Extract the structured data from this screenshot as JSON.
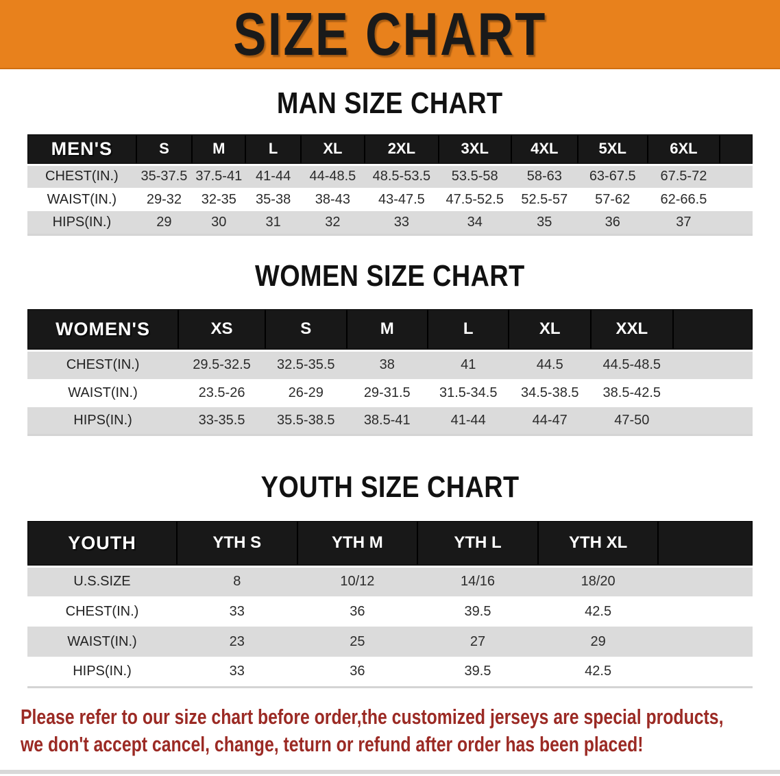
{
  "banner": {
    "title": "SIZE CHART"
  },
  "chart_data": [
    {
      "type": "table",
      "title": "MAN SIZE CHART",
      "corner_label": "MEN'S",
      "columns": [
        "S",
        "M",
        "L",
        "XL",
        "2XL",
        "3XL",
        "4XL",
        "5XL",
        "6XL"
      ],
      "rows": [
        {
          "label": "CHEST(IN.)",
          "values": [
            "35-37.5",
            "37.5-41",
            "41-44",
            "44-48.5",
            "48.5-53.5",
            "53.5-58",
            "58-63",
            "63-67.5",
            "67.5-72"
          ]
        },
        {
          "label": "WAIST(IN.)",
          "values": [
            "29-32",
            "32-35",
            "35-38",
            "38-43",
            "43-47.5",
            "47.5-52.5",
            "52.5-57",
            "57-62",
            "62-66.5"
          ]
        },
        {
          "label": "HIPS(IN.)",
          "values": [
            "29",
            "30",
            "31",
            "32",
            "33",
            "34",
            "35",
            "36",
            "37"
          ]
        }
      ]
    },
    {
      "type": "table",
      "title": "WOMEN SIZE CHART",
      "corner_label": "WOMEN'S",
      "columns": [
        "XS",
        "S",
        "M",
        "L",
        "XL",
        "XXL"
      ],
      "rows": [
        {
          "label": "CHEST(IN.)",
          "values": [
            "29.5-32.5",
            "32.5-35.5",
            "38",
            "41",
            "44.5",
            "44.5-48.5"
          ]
        },
        {
          "label": "WAIST(IN.)",
          "values": [
            "23.5-26",
            "26-29",
            "29-31.5",
            "31.5-34.5",
            "34.5-38.5",
            "38.5-42.5"
          ]
        },
        {
          "label": "HIPS(IN.)",
          "values": [
            "33-35.5",
            "35.5-38.5",
            "38.5-41",
            "41-44",
            "44-47",
            "47-50"
          ]
        }
      ]
    },
    {
      "type": "table",
      "title": "YOUTH SIZE CHART",
      "corner_label": "YOUTH",
      "columns": [
        "YTH S",
        "YTH M",
        "YTH L",
        "YTH XL"
      ],
      "rows": [
        {
          "label": "U.S.SIZE",
          "values": [
            "8",
            "10/12",
            "14/16",
            "18/20"
          ]
        },
        {
          "label": "CHEST(IN.)",
          "values": [
            "33",
            "36",
            "39.5",
            "42.5"
          ]
        },
        {
          "label": "WAIST(IN.)",
          "values": [
            "23",
            "25",
            "27",
            "29"
          ]
        },
        {
          "label": "HIPS(IN.)",
          "values": [
            "33",
            "36",
            "39.5",
            "42.5"
          ]
        }
      ]
    }
  ],
  "footer": {
    "line1": "Please refer to our size chart before order,the customized jerseys are special products,",
    "line2": "we don't accept cancel, change, teturn or refund after order has been placed!"
  },
  "colors": {
    "banner_orange": "#E8811C",
    "header_black": "#181818",
    "row_gray": "#DBDBDB",
    "footer_red": "#9B2A24",
    "title_ink": "#1A1A1A"
  }
}
